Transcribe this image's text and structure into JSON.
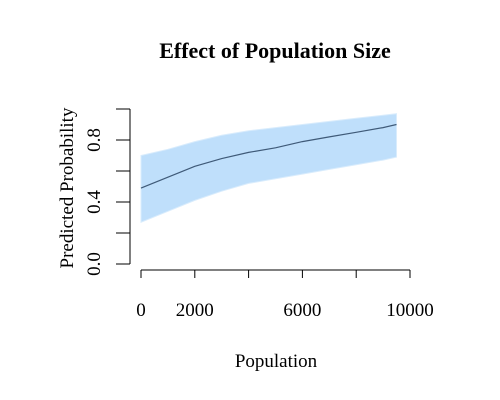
{
  "chart_data": {
    "type": "line",
    "title": "Effect of Population Size",
    "xlabel": "Population",
    "ylabel": "Predicted Probability",
    "xlim": [
      0,
      10000
    ],
    "ylim": [
      0,
      1
    ],
    "x_ticks": [
      0,
      2000,
      4000,
      6000,
      8000,
      10000
    ],
    "x_tick_labels": [
      "0",
      "2000",
      "",
      "6000",
      "",
      "10000"
    ],
    "y_ticks": [
      0,
      0.2,
      0.4,
      0.6,
      0.8,
      1
    ],
    "y_tick_labels": [
      "0.0",
      "",
      "0.4",
      "",
      "0.8",
      ""
    ],
    "grid": false,
    "legend": "none",
    "series": [
      {
        "x": [
          0,
          1000,
          2000,
          3000,
          4000,
          5000,
          6000,
          7000,
          8000,
          9000,
          9500
        ],
        "y": [
          0.49,
          0.56,
          0.63,
          0.68,
          0.72,
          0.75,
          0.79,
          0.82,
          0.85,
          0.88,
          0.9
        ],
        "lower": [
          0.27,
          0.34,
          0.41,
          0.47,
          0.52,
          0.55,
          0.58,
          0.61,
          0.64,
          0.67,
          0.69
        ],
        "upper": [
          0.7,
          0.74,
          0.79,
          0.83,
          0.86,
          0.88,
          0.9,
          0.92,
          0.94,
          0.96,
          0.97
        ],
        "line_color": "#3f5a78",
        "band_color": "#bfdffb"
      }
    ]
  }
}
